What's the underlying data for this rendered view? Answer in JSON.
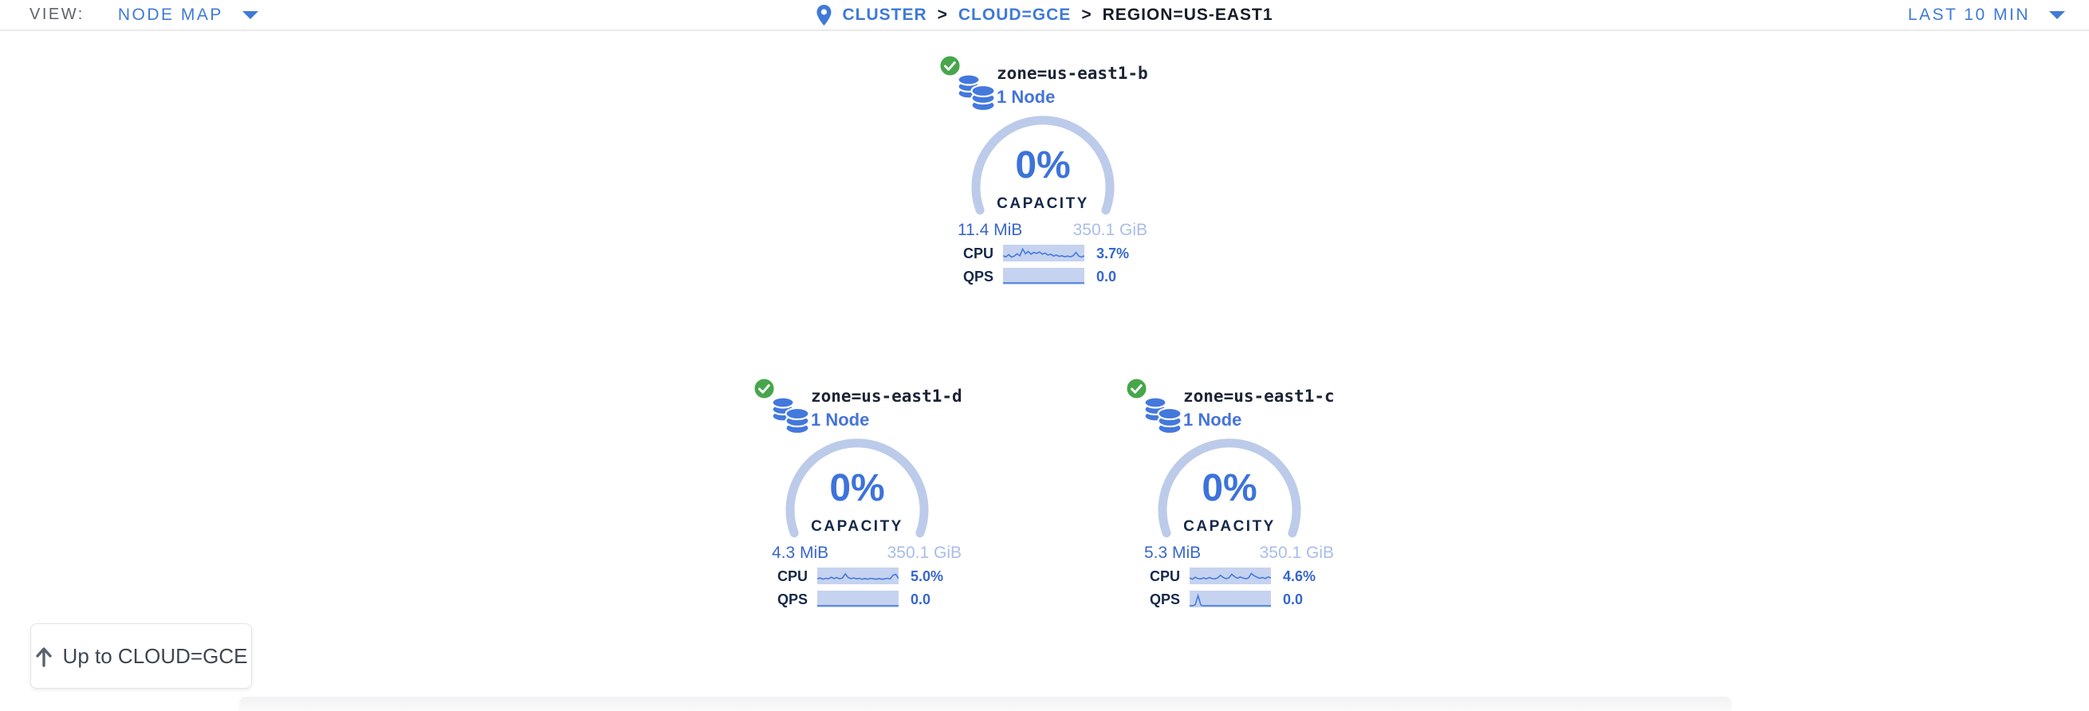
{
  "header": {
    "view_label": "VIEW:",
    "view_value": "NODE MAP",
    "breadcrumb_separator": ">",
    "breadcrumb": [
      {
        "label": "CLUSTER",
        "type": "link"
      },
      {
        "label": "CLOUD=GCE",
        "type": "link"
      },
      {
        "label": "REGION=US-EAST1",
        "type": "current"
      }
    ],
    "time_range": "LAST 10 MIN"
  },
  "zones": [
    {
      "name": "zone=us-east1-b",
      "nodes_label": "1 Node",
      "status": "healthy",
      "capacity": {
        "percent_label": "0%",
        "caption": "CAPACITY",
        "used": "11.4 MiB",
        "total": "350.1 GiB"
      },
      "cpu": {
        "label": "CPU",
        "value": "3.7%",
        "spark": [
          0.3,
          0.22,
          0.38,
          0.2,
          0.28,
          0.45,
          0.3,
          0.8,
          0.45,
          0.62,
          0.42,
          0.55,
          0.48,
          0.58,
          0.42,
          0.5,
          0.35,
          0.42,
          0.28,
          0.35,
          0.25,
          0.3,
          0.22,
          0.28,
          0.22,
          0.3,
          0.55,
          0.28,
          0.2,
          0.3
        ]
      },
      "qps": {
        "label": "QPS",
        "value": "0.0",
        "spark": [
          0,
          0,
          0,
          0,
          0,
          0,
          0,
          0,
          0,
          0,
          0,
          0,
          0,
          0,
          0,
          0,
          0,
          0,
          0,
          0,
          0,
          0,
          0,
          0,
          0,
          0,
          0,
          0,
          0,
          0
        ]
      }
    },
    {
      "name": "zone=us-east1-d",
      "nodes_label": "1 Node",
      "status": "healthy",
      "capacity": {
        "percent_label": "0%",
        "caption": "CAPACITY",
        "used": "4.3 MiB",
        "total": "350.1 GiB"
      },
      "cpu": {
        "label": "CPU",
        "value": "5.0%",
        "spark": [
          0.28,
          0.35,
          0.25,
          0.32,
          0.28,
          0.4,
          0.3,
          0.38,
          0.28,
          0.35,
          0.65,
          0.38,
          0.3,
          0.35,
          0.28,
          0.32,
          0.25,
          0.3,
          0.25,
          0.32,
          0.28,
          0.25,
          0.3,
          0.25,
          0.28,
          0.32,
          0.28,
          0.55,
          0.62,
          0.3
        ]
      },
      "qps": {
        "label": "QPS",
        "value": "0.0",
        "spark": [
          0,
          0,
          0,
          0,
          0,
          0,
          0,
          0,
          0,
          0,
          0,
          0,
          0,
          0,
          0,
          0,
          0,
          0,
          0,
          0,
          0,
          0,
          0,
          0,
          0,
          0,
          0,
          0,
          0,
          0
        ]
      }
    },
    {
      "name": "zone=us-east1-c",
      "nodes_label": "1 Node",
      "status": "healthy",
      "capacity": {
        "percent_label": "0%",
        "caption": "CAPACITY",
        "used": "5.3 MiB",
        "total": "350.1 GiB"
      },
      "cpu": {
        "label": "CPU",
        "value": "4.6%",
        "spark": [
          0.35,
          0.25,
          0.4,
          0.3,
          0.28,
          0.35,
          0.28,
          0.38,
          0.3,
          0.28,
          0.35,
          0.55,
          0.38,
          0.3,
          0.35,
          0.62,
          0.45,
          0.32,
          0.42,
          0.35,
          0.28,
          0.35,
          0.68,
          0.52,
          0.4,
          0.32,
          0.38,
          0.3,
          0.42,
          0.35
        ]
      },
      "qps": {
        "label": "QPS",
        "value": "0.0",
        "spark": [
          0,
          0,
          0.06,
          0.75,
          0.04,
          0,
          0,
          0,
          0,
          0,
          0,
          0,
          0,
          0,
          0,
          0,
          0,
          0,
          0,
          0,
          0,
          0,
          0,
          0,
          0,
          0,
          0,
          0,
          0,
          0
        ]
      }
    }
  ],
  "up_button": {
    "label": "Up to CLOUD=GCE"
  },
  "icons": {
    "breadcrumb_pin": "location-pin",
    "zone_icon": "database-stack",
    "zone_status": "check-circle",
    "dropdown": "caret-down",
    "up_button": "arrow-up"
  },
  "colors": {
    "accent_blue": "#3f7ad6",
    "dark_navy": "#152849",
    "node_blue": "#4574d9",
    "pct_blue": "#3d73da",
    "arc_blue": "#bccbe9",
    "icon_blue": "#4378dd",
    "spark_bg": "#c5d3f0",
    "spark_line": "#4679dd",
    "used_blue": "#3a67c9",
    "total_blue": "#a9bde7",
    "value_blue": "#3566cd",
    "healthy_green": "#47a64b"
  }
}
